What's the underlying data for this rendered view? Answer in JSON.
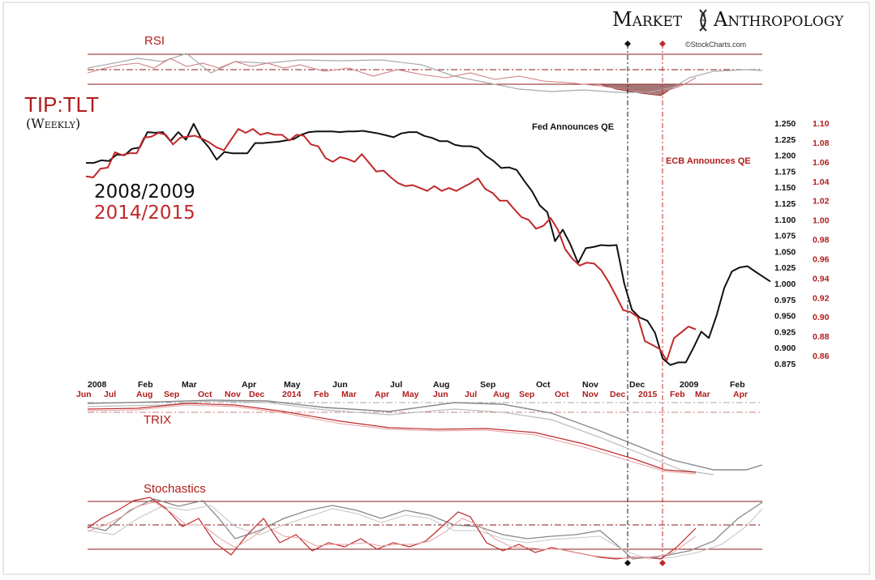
{
  "brand": {
    "name_part1": "Market",
    "name_part2": "Anthropology",
    "credit": "©StockCharts.com"
  },
  "colors": {
    "series_2008": "#111111",
    "series_2014": "#c0282a",
    "accent_red": "#b01c1c",
    "panel_line": "#8b1a1a"
  },
  "chart_data": {
    "type": "line",
    "title": "TIP:TLT",
    "subtitle": "(Weekly)",
    "legend": [
      {
        "name": "2008/2009",
        "color": "#111111"
      },
      {
        "name": "2014/2015",
        "color": "#c0282a"
      }
    ],
    "indicator_panels": [
      "RSI",
      "TRIX",
      "Stochastics"
    ],
    "annotations": [
      {
        "text": "Fed Announces QE",
        "series": "2008/2009"
      },
      {
        "text": "ECB Announces QE",
        "series": "2014/2015"
      }
    ],
    "axes": {
      "black_y_ticks": [
        "1.250",
        "1.225",
        "1.200",
        "1.175",
        "1.150",
        "1.125",
        "1.100",
        "1.075",
        "1.050",
        "1.025",
        "1.000",
        "0.975",
        "0.950",
        "0.925",
        "0.900",
        "0.875"
      ],
      "red_y_ticks": [
        "1.10",
        "1.08",
        "1.06",
        "1.04",
        "1.02",
        "1.00",
        "0.98",
        "0.96",
        "0.94",
        "0.92",
        "0.90",
        "0.88",
        "0.86"
      ],
      "black_ylim": [
        0.875,
        1.25
      ],
      "red_ylim": [
        0.85,
        1.1
      ],
      "black_x_ticks": [
        "2008",
        "Feb",
        "Mar",
        "Apr",
        "May",
        "Jun",
        "Jul",
        "Aug",
        "Sep",
        "Oct",
        "Nov",
        "Dec",
        "2009",
        "Feb"
      ],
      "red_x_ticks": [
        "Jun",
        "Jul",
        "Aug",
        "Sep",
        "Oct",
        "Nov",
        "Dec",
        "2014",
        "Feb",
        "Mar",
        "Apr",
        "May",
        "Jun",
        "Jul",
        "Aug",
        "Sep",
        "Oct",
        "Nov",
        "Dec",
        "2015",
        "Feb",
        "Mar",
        "Apr"
      ]
    },
    "series": [
      {
        "name": "2008/2009",
        "values": [
          1.188,
          1.188,
          1.192,
          1.191,
          1.201,
          1.2,
          1.21,
          1.212,
          1.236,
          1.235,
          1.236,
          1.222,
          1.236,
          1.224,
          1.249,
          1.226,
          1.212,
          1.193,
          1.205,
          1.203,
          1.203,
          1.203,
          1.219,
          1.219,
          1.22,
          1.221,
          1.223,
          1.225,
          1.232,
          1.236,
          1.237,
          1.237,
          1.237,
          1.236,
          1.237,
          1.237,
          1.238,
          1.236,
          1.234,
          1.231,
          1.228,
          1.234,
          1.236,
          1.236,
          1.23,
          1.227,
          1.222,
          1.222,
          1.216,
          1.214,
          1.214,
          1.211,
          1.199,
          1.191,
          1.18,
          1.181,
          1.177,
          1.16,
          1.144,
          1.122,
          1.111,
          1.066,
          1.084,
          1.061,
          1.032,
          1.055,
          1.057,
          1.06,
          1.059,
          1.06,
          1.0,
          0.959,
          0.947,
          0.942,
          0.923,
          0.883,
          0.873,
          0.877,
          0.877,
          0.9,
          0.925,
          0.915,
          0.95,
          0.993,
          1.019,
          1.025,
          1.027,
          1.019,
          1.011,
          1.003
        ]
      },
      {
        "name": "2014/2015",
        "values": [
          1.045,
          1.044,
          1.053,
          1.054,
          1.07,
          1.067,
          1.069,
          1.069,
          1.085,
          1.086,
          1.09,
          1.088,
          1.078,
          1.085,
          1.086,
          1.087,
          1.084,
          1.08,
          1.075,
          1.072,
          1.083,
          1.094,
          1.09,
          1.094,
          1.088,
          1.09,
          1.088,
          1.088,
          1.082,
          1.088,
          1.087,
          1.078,
          1.076,
          1.064,
          1.06,
          1.065,
          1.063,
          1.06,
          1.068,
          1.059,
          1.05,
          1.051,
          1.044,
          1.038,
          1.035,
          1.036,
          1.033,
          1.03,
          1.035,
          1.03,
          1.033,
          1.03,
          1.034,
          1.038,
          1.043,
          1.032,
          1.028,
          1.02,
          1.02,
          1.011,
          1.003,
          1.0,
          0.991,
          0.994,
          1.002,
          0.99,
          0.97,
          0.96,
          0.953,
          0.956,
          0.955,
          0.948,
          0.936,
          0.922,
          0.907,
          0.905,
          0.9,
          0.875,
          0.871,
          0.867,
          0.855,
          0.878,
          0.884,
          0.89,
          0.887
        ]
      }
    ]
  }
}
